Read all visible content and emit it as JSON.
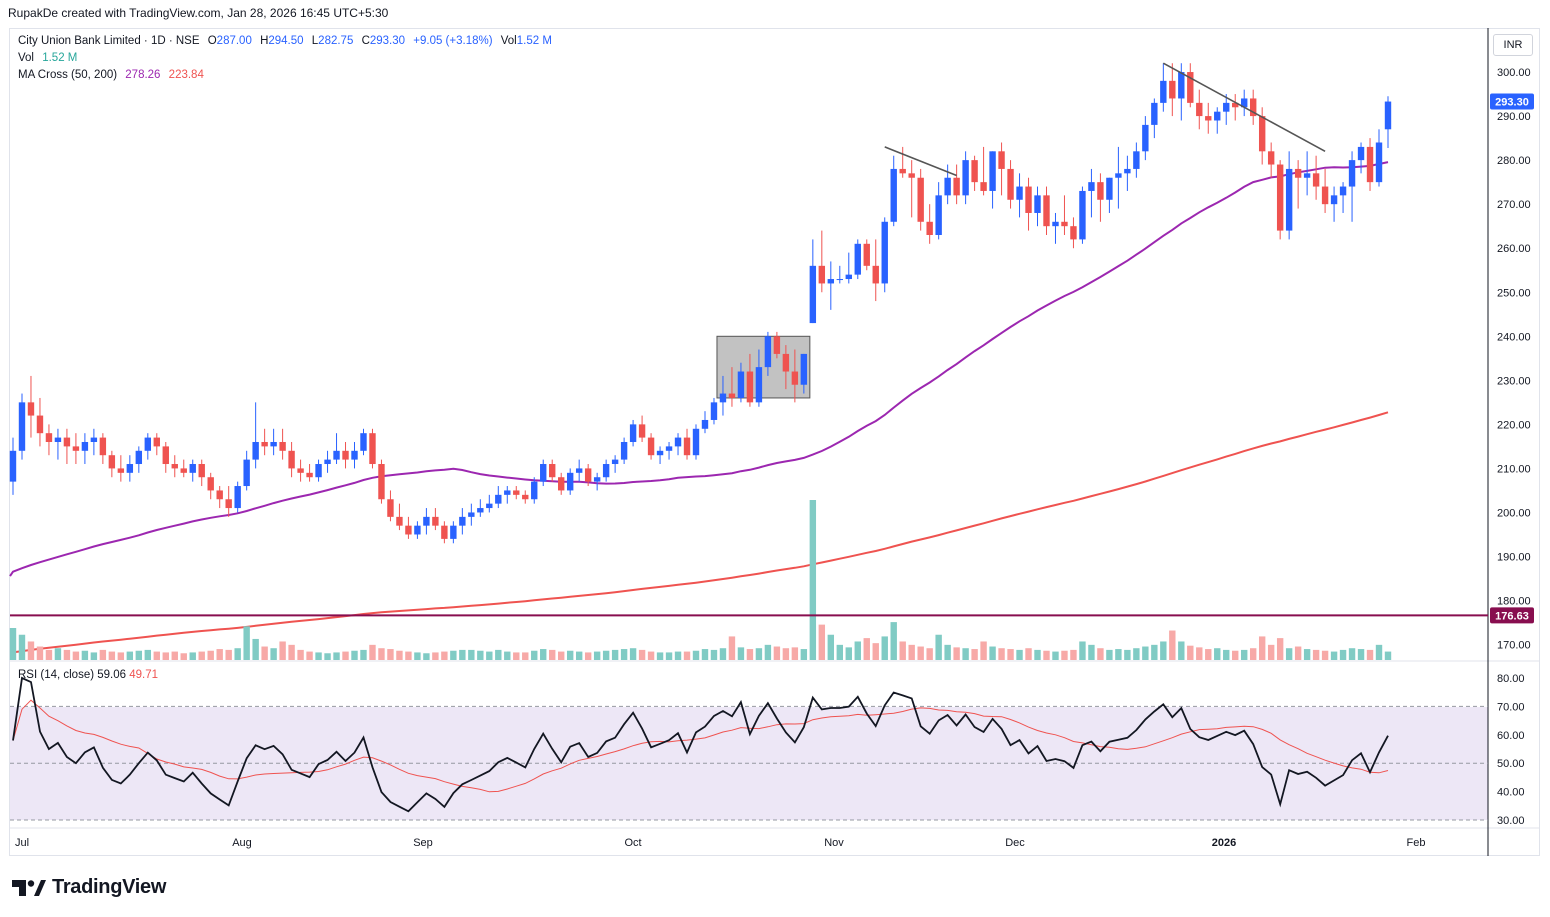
{
  "header": {
    "title": "RupakDe created with TradingView.com, Jan 28, 2026 16:45 UTC+5:30"
  },
  "legend": {
    "symbol": "City Union Bank Limited · 1D · NSE",
    "o_label": "O",
    "o": "287.00",
    "h_label": "H",
    "h": "294.50",
    "l_label": "L",
    "l": "282.75",
    "c_label": "C",
    "c": "293.30",
    "change": "+9.05 (+3.18%)",
    "vol_label": "Vol",
    "vol": "1.52 M",
    "vol_row_label": "Vol",
    "vol_row_value": "1.52 M",
    "ma_label": "MA Cross (50, 200)",
    "ma50": "278.26",
    "ma200": "223.84",
    "rsi_label": "RSI (14, close)",
    "rsi": "59.06",
    "rsi_ma": "49.71"
  },
  "currency": "INR",
  "brand": "TradingView",
  "colors": {
    "up": "#2962ff",
    "down": "#ef5350",
    "ma50": "#9c27b0",
    "ma200": "#ef5350",
    "vol_up": "#80cbc4",
    "vol_down": "#f7a9a7",
    "rsi": "#131722",
    "rsi_ma": "#ef5350",
    "support": "#880e4f",
    "rsi_band": "#ede7f6",
    "box": "#9e9e9e"
  },
  "chart_data": {
    "type": "candlestick",
    "symbol": "City Union Bank Limited",
    "interval": "1D",
    "exchange": "NSE",
    "price_axis": {
      "ticks": [
        "170.00",
        "180.00",
        "190.00",
        "200.00",
        "210.00",
        "220.00",
        "230.00",
        "240.00",
        "250.00",
        "260.00",
        "270.00",
        "280.00",
        "290.00",
        "300.00"
      ],
      "ylim": [
        166.5,
        310
      ]
    },
    "rsi_axis": {
      "ticks": [
        "30.00",
        "40.00",
        "50.00",
        "60.00",
        "70.00",
        "80.00"
      ],
      "ylim": [
        28,
        84
      ],
      "bands": [
        30,
        50,
        70
      ]
    },
    "time_axis": [
      "Jul",
      "Aug",
      "Sep",
      "Oct",
      "Nov",
      "Dec",
      "2026",
      "Feb"
    ],
    "last_price": "293.30",
    "support_level": 176.63,
    "support_label": "176.63",
    "candles": [
      [
        207,
        217,
        204,
        214
      ],
      [
        214,
        227,
        212,
        225
      ],
      [
        225,
        231,
        217,
        222
      ],
      [
        222,
        226,
        215,
        218
      ],
      [
        218,
        220,
        213,
        216
      ],
      [
        216,
        219,
        212,
        217
      ],
      [
        217,
        219,
        211,
        215
      ],
      [
        215,
        218,
        211,
        214
      ],
      [
        214,
        218,
        211,
        216
      ],
      [
        216,
        219,
        213,
        217
      ],
      [
        217,
        218,
        211,
        213
      ],
      [
        213,
        214,
        208,
        210
      ],
      [
        210,
        213,
        207,
        209
      ],
      [
        209,
        213,
        207,
        211
      ],
      [
        211,
        215,
        209,
        214
      ],
      [
        214,
        218,
        212,
        217
      ],
      [
        217,
        218,
        213,
        215
      ],
      [
        215,
        216,
        209,
        211
      ],
      [
        211,
        213,
        208,
        210
      ],
      [
        210,
        212,
        208,
        209
      ],
      [
        209,
        212,
        207,
        211
      ],
      [
        211,
        212,
        206,
        208
      ],
      [
        208,
        209,
        203,
        205
      ],
      [
        205,
        206,
        201,
        203
      ],
      [
        203,
        206,
        199,
        201
      ],
      [
        201,
        207,
        200,
        206
      ],
      [
        206,
        214,
        205,
        212
      ],
      [
        212,
        225,
        210,
        216
      ],
      [
        216,
        219,
        213,
        215
      ],
      [
        215,
        219,
        213,
        216
      ],
      [
        216,
        219,
        212,
        214
      ],
      [
        214,
        216,
        208,
        210
      ],
      [
        210,
        212,
        207,
        209
      ],
      [
        209,
        211,
        207,
        208
      ],
      [
        208,
        212,
        207,
        211
      ],
      [
        211,
        214,
        209,
        212
      ],
      [
        212,
        218,
        211,
        214
      ],
      [
        214,
        216,
        210,
        212
      ],
      [
        212,
        216,
        210,
        214
      ],
      [
        214,
        219,
        213,
        218
      ],
      [
        218,
        219,
        210,
        211
      ],
      [
        211,
        212,
        202,
        203
      ],
      [
        203,
        205,
        198,
        199
      ],
      [
        199,
        202,
        196,
        197
      ],
      [
        197,
        199,
        194,
        195
      ],
      [
        195,
        198,
        194,
        197
      ],
      [
        197,
        201,
        195,
        199
      ],
      [
        199,
        201,
        196,
        197
      ],
      [
        197,
        198,
        193,
        194
      ],
      [
        194,
        198,
        193,
        197
      ],
      [
        197,
        201,
        195,
        199
      ],
      [
        199,
        202,
        197,
        200
      ],
      [
        200,
        203,
        199,
        201
      ],
      [
        201,
        204,
        200,
        202
      ],
      [
        202,
        206,
        201,
        204
      ],
      [
        204,
        206,
        202,
        205
      ],
      [
        205,
        206,
        203,
        204
      ],
      [
        204,
        205,
        202,
        203
      ],
      [
        203,
        208,
        202,
        207
      ],
      [
        207,
        212,
        206,
        211
      ],
      [
        211,
        212,
        207,
        208
      ],
      [
        208,
        209,
        204,
        205
      ],
      [
        205,
        210,
        204,
        209
      ],
      [
        209,
        212,
        207,
        210
      ],
      [
        210,
        211,
        206,
        207
      ],
      [
        207,
        209,
        205,
        208
      ],
      [
        208,
        212,
        207,
        211
      ],
      [
        211,
        213,
        209,
        212
      ],
      [
        212,
        217,
        211,
        216
      ],
      [
        216,
        221,
        215,
        220
      ],
      [
        220,
        222,
        216,
        217
      ],
      [
        217,
        218,
        212,
        213
      ],
      [
        213,
        215,
        211,
        214
      ],
      [
        214,
        216,
        212,
        215
      ],
      [
        215,
        218,
        213,
        217
      ],
      [
        217,
        219,
        212,
        213
      ],
      [
        213,
        220,
        212,
        219
      ],
      [
        219,
        223,
        218,
        221
      ],
      [
        221,
        226,
        220,
        225
      ],
      [
        225,
        231,
        222,
        227
      ],
      [
        227,
        233,
        224,
        226
      ],
      [
        226,
        234,
        225,
        232
      ],
      [
        232,
        236,
        224,
        225
      ],
      [
        225,
        237,
        224,
        233
      ],
      [
        233,
        241,
        231,
        240
      ],
      [
        240,
        241,
        235,
        236
      ],
      [
        236,
        238,
        228,
        232
      ],
      [
        232,
        237,
        225,
        229
      ],
      [
        229,
        236,
        227,
        236
      ],
      [
        243,
        262,
        243,
        256
      ],
      [
        256,
        264,
        250,
        252
      ],
      [
        252,
        257,
        246,
        253
      ],
      [
        253,
        256,
        252,
        253
      ],
      [
        253,
        259,
        252,
        254
      ],
      [
        254,
        262,
        253,
        261
      ],
      [
        261,
        262,
        255,
        256
      ],
      [
        256,
        262,
        248,
        252
      ],
      [
        252,
        267,
        250,
        266
      ],
      [
        266,
        281,
        265,
        278
      ],
      [
        278,
        283,
        276,
        277
      ],
      [
        277,
        280,
        267,
        276
      ],
      [
        276,
        278,
        264,
        266
      ],
      [
        266,
        270,
        261,
        263
      ],
      [
        263,
        275,
        262,
        272
      ],
      [
        272,
        279,
        270,
        276
      ],
      [
        276,
        279,
        270,
        272
      ],
      [
        272,
        282,
        270,
        280
      ],
      [
        280,
        281,
        273,
        275
      ],
      [
        275,
        283,
        272,
        273
      ],
      [
        273,
        282,
        269,
        282
      ],
      [
        282,
        284,
        272,
        278
      ],
      [
        278,
        280,
        269,
        271
      ],
      [
        271,
        277,
        267,
        274
      ],
      [
        274,
        276,
        264,
        268
      ],
      [
        268,
        274,
        265,
        272
      ],
      [
        272,
        274,
        263,
        265
      ],
      [
        265,
        268,
        261,
        266
      ],
      [
        266,
        272,
        263,
        265
      ],
      [
        265,
        267,
        260,
        262
      ],
      [
        262,
        274,
        261,
        273
      ],
      [
        273,
        278,
        267,
        275
      ],
      [
        275,
        277,
        266,
        271
      ],
      [
        271,
        276,
        268,
        276
      ],
      [
        276,
        283,
        269,
        277
      ],
      [
        277,
        281,
        273,
        278
      ],
      [
        278,
        284,
        276,
        282
      ],
      [
        282,
        290,
        280,
        288
      ],
      [
        288,
        294,
        285,
        293
      ],
      [
        293,
        302,
        291,
        298
      ],
      [
        298,
        302,
        290,
        294
      ],
      [
        294,
        302,
        289,
        300
      ],
      [
        300,
        302,
        292,
        293
      ],
      [
        293,
        296,
        287,
        290
      ],
      [
        290,
        293,
        286,
        289
      ],
      [
        289,
        292,
        286,
        291
      ],
      [
        291,
        295,
        288,
        293
      ],
      [
        293,
        295,
        289,
        292
      ],
      [
        292,
        296,
        290,
        294
      ],
      [
        294,
        296,
        288,
        290
      ],
      [
        290,
        292,
        279,
        282
      ],
      [
        282,
        284,
        276,
        279
      ],
      [
        279,
        280,
        262,
        264
      ],
      [
        264,
        282,
        262,
        278
      ],
      [
        278,
        280,
        269,
        276
      ],
      [
        276,
        282,
        272,
        277
      ],
      [
        277,
        281,
        271,
        274
      ],
      [
        274,
        278,
        268,
        270
      ],
      [
        270,
        274,
        266,
        272
      ],
      [
        272,
        275,
        268,
        274
      ],
      [
        274,
        282,
        266,
        280
      ],
      [
        280,
        284,
        277,
        283
      ],
      [
        283,
        285,
        273,
        275
      ],
      [
        275,
        287,
        274,
        284
      ],
      [
        287,
        294.5,
        282.75,
        293.3
      ]
    ],
    "volume": [
      38,
      30,
      22,
      16,
      12,
      14,
      12,
      10,
      11,
      9,
      12,
      10,
      9,
      10,
      11,
      12,
      10,
      9,
      10,
      8,
      9,
      10,
      11,
      13,
      12,
      14,
      40,
      25,
      16,
      14,
      22,
      18,
      12,
      10,
      9,
      8,
      9,
      10,
      11,
      12,
      18,
      14,
      13,
      11,
      10,
      9,
      8,
      9,
      10,
      11,
      12,
      12,
      11,
      10,
      12,
      10,
      9,
      9,
      11,
      13,
      12,
      10,
      11,
      10,
      9,
      10,
      11,
      12,
      13,
      14,
      12,
      10,
      9,
      9,
      10,
      10,
      11,
      13,
      12,
      14,
      28,
      15,
      13,
      14,
      18,
      16,
      14,
      15,
      13,
      190,
      42,
      30,
      18,
      15,
      22,
      26,
      20,
      28,
      45,
      22,
      18,
      16,
      14,
      30,
      18,
      15,
      14,
      13,
      22,
      16,
      14,
      13,
      12,
      14,
      12,
      11,
      10,
      11,
      12,
      22,
      18,
      14,
      12,
      13,
      12,
      14,
      16,
      18,
      22,
      35,
      22,
      17,
      15,
      13,
      14,
      12,
      11,
      12,
      14,
      28,
      18,
      26,
      14,
      16,
      13,
      12,
      11,
      10,
      12,
      14,
      13,
      12,
      18,
      10
    ],
    "ma50": [],
    "ma200": [],
    "trendlines": [
      {
        "from": [
          97,
          283
        ],
        "to": [
          105,
          276.5
        ]
      },
      {
        "from": [
          128,
          302
        ],
        "to": [
          146,
          282
        ]
      }
    ],
    "consolidation_box": {
      "x0": 79,
      "x1": 88,
      "y0": 226,
      "y1": 240
    }
  }
}
